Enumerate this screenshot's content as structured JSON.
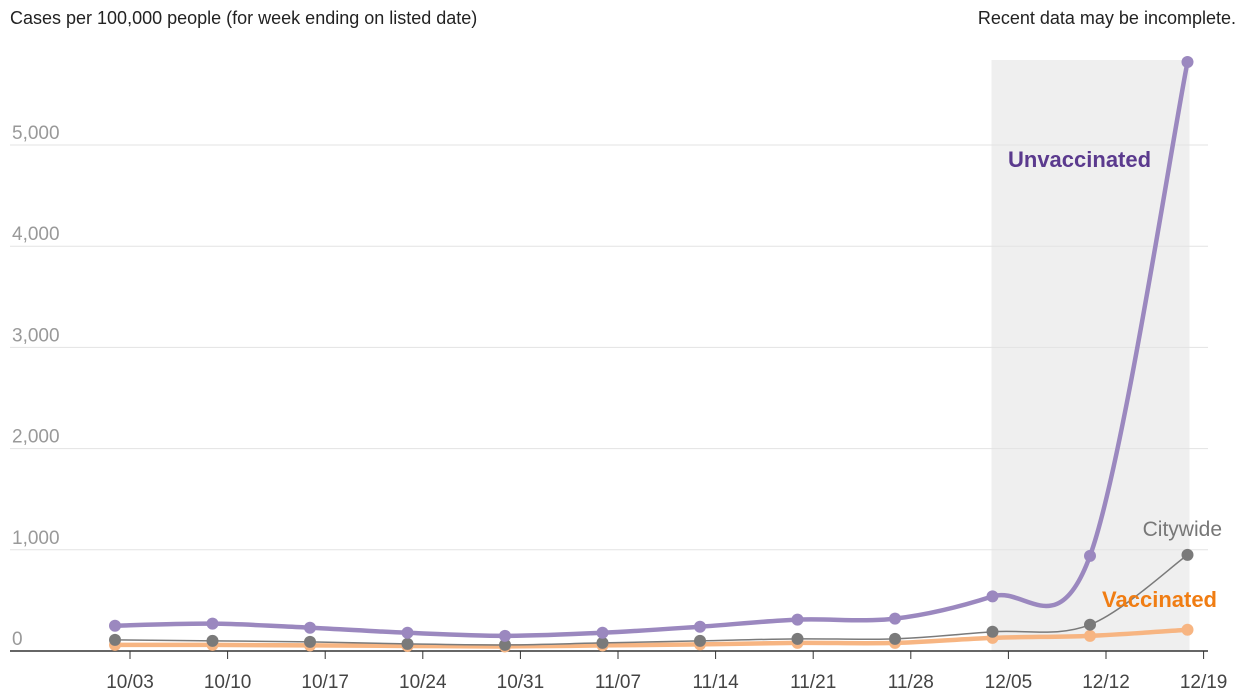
{
  "header": {
    "title": "Cases per 100,000 people (for week ending on listed date)",
    "note": "Recent data may be incomplete."
  },
  "colors": {
    "unvaccinated": "#9b88bf",
    "unvaccinated_label": "#5b3a8e",
    "vaccinated": "#f7b582",
    "vaccinated_label": "#f07d13",
    "citywide": "#7a7a7a",
    "citywide_label": "#777777",
    "shade": "#efefef",
    "grid": "#e3e3e3",
    "axis": "#333333"
  },
  "chart_data": {
    "type": "line",
    "title": "Cases per 100,000 people (for week ending on listed date)",
    "annotation": "Recent data may be incomplete.",
    "xlabel": "",
    "ylabel": "",
    "ylim": [
      0,
      5800
    ],
    "yticks": [
      0,
      1000,
      2000,
      3000,
      4000,
      5000
    ],
    "ytick_labels": [
      "0",
      "1,000",
      "2,000",
      "3,000",
      "4,000",
      "5,000"
    ],
    "xticks": [
      "10/03",
      "10/10",
      "10/17",
      "10/24",
      "10/31",
      "11/07",
      "11/14",
      "11/21",
      "11/28",
      "12/05",
      "12/12",
      "12/19"
    ],
    "x": [
      "10/02",
      "10/09",
      "10/16",
      "10/23",
      "10/30",
      "11/06",
      "11/13",
      "11/20",
      "11/27",
      "12/04",
      "12/11",
      "12/18"
    ],
    "grid": true,
    "shaded_range": [
      "12/04",
      "12/18"
    ],
    "series": [
      {
        "name": "Unvaccinated",
        "key": "unvaccinated",
        "values": [
          250,
          270,
          230,
          180,
          150,
          180,
          240,
          310,
          320,
          540,
          940,
          5820
        ]
      },
      {
        "name": "Citywide",
        "key": "citywide",
        "values": [
          110,
          100,
          90,
          70,
          60,
          80,
          100,
          120,
          120,
          190,
          260,
          950
        ]
      },
      {
        "name": "Vaccinated",
        "key": "vaccinated",
        "values": [
          60,
          60,
          55,
          50,
          45,
          55,
          65,
          80,
          80,
          130,
          150,
          210
        ]
      }
    ]
  }
}
